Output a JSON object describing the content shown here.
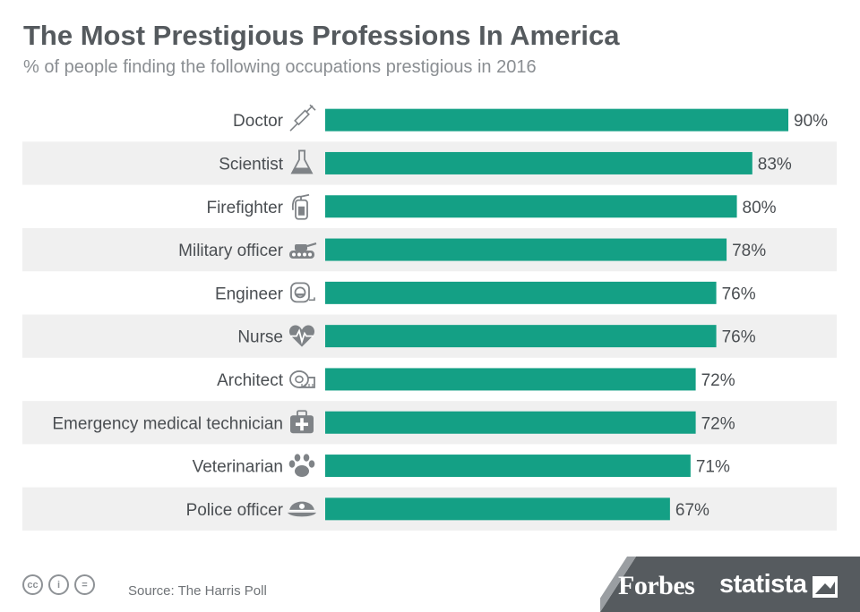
{
  "header": {
    "title": "The Most Prestigious Professions In America",
    "subtitle": "% of people finding the following occupations prestigious in 2016"
  },
  "chart_data": {
    "type": "bar",
    "orientation": "horizontal",
    "categories": [
      "Doctor",
      "Scientist",
      "Firefighter",
      "Military officer",
      "Engineer",
      "Nurse",
      "Architect",
      "Emergency medical technician",
      "Veterinarian",
      "Police officer"
    ],
    "values": [
      90,
      83,
      80,
      78,
      76,
      76,
      72,
      72,
      71,
      67
    ],
    "value_labels": [
      "90%",
      "83%",
      "80%",
      "78%",
      "76%",
      "76%",
      "72%",
      "72%",
      "71%",
      "67%"
    ],
    "icons": [
      "syringe-icon",
      "flask-icon",
      "fire-extinguisher-icon",
      "tank-icon",
      "tape-measure-icon",
      "heart-pulse-icon",
      "measuring-tape-icon",
      "first-aid-kit-icon",
      "paw-icon",
      "police-cap-icon"
    ],
    "title": "The Most Prestigious Professions In America",
    "xlim": [
      0,
      90
    ],
    "grid": false,
    "bar_color": "#14a085",
    "alt_row_color": "#f0f0f0"
  },
  "footer": {
    "source": "Source: The Harris Poll",
    "cc_icons": [
      "cc",
      "by",
      "nd"
    ],
    "cc_glyphs": [
      "cc",
      "i",
      "="
    ],
    "brand1": "Forbes",
    "brand2": "statista"
  }
}
